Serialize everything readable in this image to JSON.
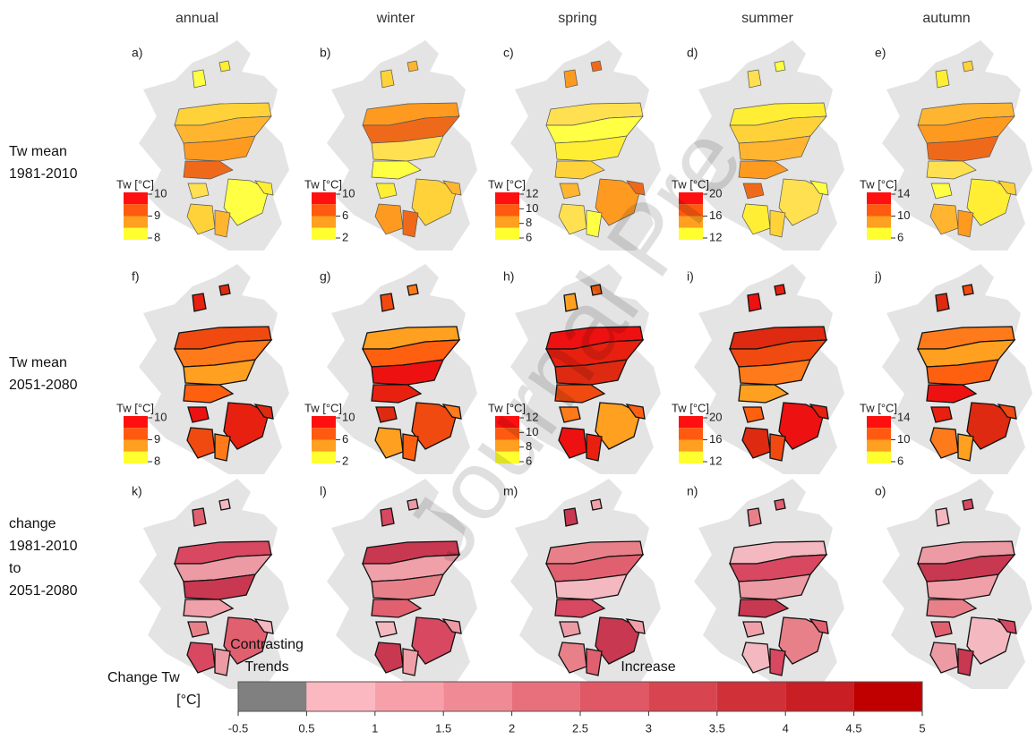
{
  "columns": [
    "annual",
    "winter",
    "spring",
    "summer",
    "autumn"
  ],
  "rows": [
    [
      "Tw mean",
      "1981-2010"
    ],
    [
      "Tw mean",
      "2051-2080"
    ],
    [
      "change",
      "1981-2010",
      "to",
      "2051-2080"
    ]
  ],
  "panels": [
    [
      "a)",
      "b)",
      "c)",
      "d)",
      "e)"
    ],
    [
      "f)",
      "g)",
      "h)",
      "i)",
      "j)"
    ],
    [
      "k)",
      "l)",
      "m)",
      "n)",
      "o)"
    ]
  ],
  "legend_title": "Tw [°C]",
  "legend_ticks": [
    [
      10,
      9,
      8
    ],
    [
      10,
      6,
      2
    ],
    [
      12,
      10,
      8,
      6
    ],
    [
      20,
      16,
      12
    ],
    [
      14,
      10,
      6
    ]
  ],
  "change_legend": {
    "title": [
      "Change Tw",
      "[°C]"
    ],
    "contrasting": [
      "Contrasting",
      "Trends"
    ],
    "increase": "Increase",
    "ticks": [
      -0.5,
      0.5,
      1,
      1.5,
      2,
      2.5,
      3,
      3.5,
      4,
      4.5,
      5
    ]
  },
  "watermark": "Journal Pre"
}
